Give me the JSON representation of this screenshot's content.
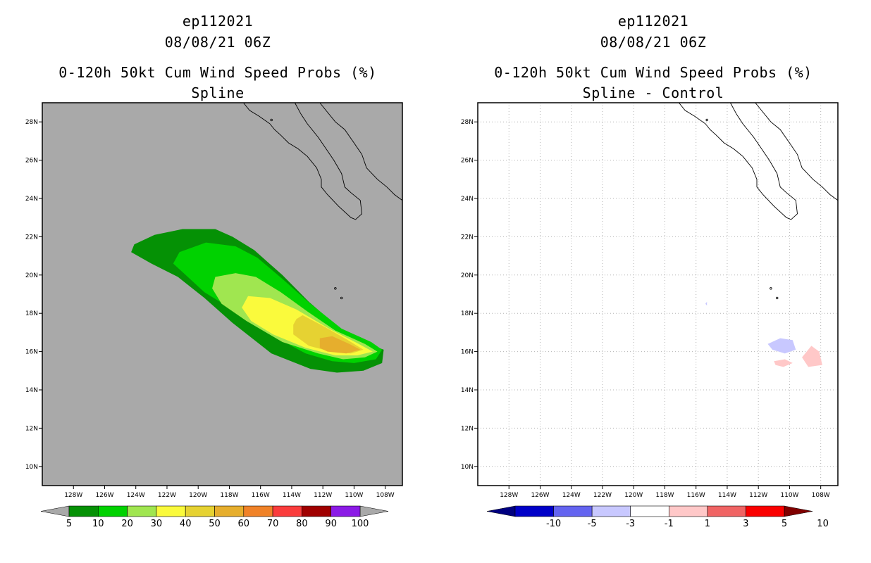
{
  "chart_data": [
    {
      "type": "heatmap",
      "title_lines": [
        "ep112021",
        "08/08/21 06Z",
        "0-120h 50kt Cum Wind Speed Probs (%)",
        "Spline"
      ],
      "xlabel": "",
      "ylabel": "",
      "xlim": [
        -130,
        -106.9
      ],
      "ylim": [
        9,
        29
      ],
      "x_ticks": [
        "128W",
        "126W",
        "124W",
        "122W",
        "120W",
        "118W",
        "116W",
        "114W",
        "112W",
        "110W",
        "108W"
      ],
      "x_tick_values": [
        -128,
        -126,
        -124,
        -122,
        -120,
        -118,
        -116,
        -114,
        -112,
        -110,
        -108
      ],
      "y_ticks": [
        "10N",
        "12N",
        "14N",
        "16N",
        "18N",
        "20N",
        "22N",
        "24N",
        "26N",
        " 28N"
      ],
      "y_tick_values": [
        10,
        12,
        14,
        16,
        18,
        20,
        22,
        24,
        26,
        28
      ],
      "grid": false,
      "background": "#a9a9a9",
      "colorbar": {
        "labels": [
          "5",
          "10",
          "20",
          "30",
          "40",
          "50",
          "60",
          "70",
          "80",
          "90",
          "100"
        ],
        "colors": [
          "#059105",
          "#00d200",
          "#a0e650",
          "#fafa3c",
          "#e6d232",
          "#e6ae2d",
          "#f08228",
          "#fa3c3c",
          "#a00000",
          "#8b1be6"
        ],
        "left_arrow": "#a9a9a9",
        "right_arrow": "#a9a9a9"
      },
      "contours": [
        {
          "level": 5,
          "color": "#059105",
          "polygon": [
            [
              -124.3,
              21.2
            ],
            [
              -124.1,
              21.6
            ],
            [
              -122.8,
              22.1
            ],
            [
              -121.0,
              22.4
            ],
            [
              -118.9,
              22.4
            ],
            [
              -117.8,
              22.0
            ],
            [
              -116.4,
              21.3
            ],
            [
              -114.6,
              20.0
            ],
            [
              -112.9,
              18.6
            ],
            [
              -110.9,
              17.2
            ],
            [
              -109.1,
              16.4
            ],
            [
              -108.1,
              16.1
            ],
            [
              -108.2,
              15.4
            ],
            [
              -109.4,
              15.0
            ],
            [
              -111.1,
              14.9
            ],
            [
              -112.8,
              15.1
            ],
            [
              -115.3,
              15.9
            ],
            [
              -117.8,
              17.5
            ],
            [
              -119.6,
              18.8
            ],
            [
              -121.3,
              19.9
            ],
            [
              -123.0,
              20.6
            ]
          ]
        },
        {
          "level": 10,
          "color": "#00d200",
          "polygon": [
            [
              -121.6,
              20.6
            ],
            [
              -121.2,
              21.2
            ],
            [
              -119.5,
              21.7
            ],
            [
              -117.6,
              21.5
            ],
            [
              -116.2,
              20.9
            ],
            [
              -114.6,
              19.8
            ],
            [
              -112.8,
              18.5
            ],
            [
              -110.8,
              17.2
            ],
            [
              -108.9,
              16.5
            ],
            [
              -108.2,
              16.1
            ],
            [
              -108.6,
              15.6
            ],
            [
              -110.0,
              15.4
            ],
            [
              -111.4,
              15.5
            ],
            [
              -113.1,
              15.9
            ],
            [
              -115.4,
              16.9
            ],
            [
              -117.6,
              18.1
            ],
            [
              -119.6,
              19.1
            ]
          ]
        },
        {
          "level": 20,
          "color": "#a0e650",
          "polygon": [
            [
              -119.1,
              19.3
            ],
            [
              -118.9,
              19.9
            ],
            [
              -117.6,
              20.1
            ],
            [
              -116.3,
              19.9
            ],
            [
              -114.7,
              19.1
            ],
            [
              -113.0,
              18.1
            ],
            [
              -111.2,
              17.1
            ],
            [
              -109.3,
              16.4
            ],
            [
              -108.5,
              16.0
            ],
            [
              -109.3,
              15.7
            ],
            [
              -110.7,
              15.6
            ],
            [
              -112.3,
              15.9
            ],
            [
              -114.6,
              16.5
            ],
            [
              -116.9,
              17.6
            ],
            [
              -118.5,
              18.5
            ]
          ]
        },
        {
          "level": 30,
          "color": "#fafa3c",
          "polygon": [
            [
              -117.2,
              18.3
            ],
            [
              -116.8,
              18.9
            ],
            [
              -115.4,
              18.8
            ],
            [
              -113.7,
              18.2
            ],
            [
              -111.6,
              17.2
            ],
            [
              -109.7,
              16.4
            ],
            [
              -108.8,
              16.0
            ],
            [
              -109.8,
              15.8
            ],
            [
              -111.2,
              15.8
            ],
            [
              -113.1,
              16.2
            ],
            [
              -115.2,
              16.9
            ],
            [
              -116.6,
              17.6
            ]
          ]
        },
        {
          "level": 40,
          "color": "#e6d232",
          "polygon": [
            [
              -113.7,
              17.7
            ],
            [
              -113.3,
              17.9
            ],
            [
              -111.9,
              17.3
            ],
            [
              -110.4,
              16.6
            ],
            [
              -109.4,
              16.1
            ],
            [
              -110.2,
              15.9
            ],
            [
              -111.5,
              16.0
            ],
            [
              -112.9,
              16.3
            ],
            [
              -113.9,
              16.9
            ],
            [
              -113.9,
              17.4
            ]
          ]
        },
        {
          "level": 50,
          "color": "#e6ae2d",
          "polygon": [
            [
              -112.2,
              16.7
            ],
            [
              -111.4,
              16.8
            ],
            [
              -110.3,
              16.4
            ],
            [
              -109.6,
              16.1
            ],
            [
              -110.5,
              15.9
            ],
            [
              -111.7,
              16.0
            ],
            [
              -112.2,
              16.2
            ]
          ]
        }
      ],
      "coast_label": "Baja California coastline"
    },
    {
      "type": "heatmap",
      "title_lines": [
        "ep112021",
        "08/08/21 06Z",
        "0-120h 50kt Cum Wind Speed Probs (%)",
        "Spline - Control"
      ],
      "xlabel": "",
      "ylabel": "",
      "xlim": [
        -130,
        -106.9
      ],
      "ylim": [
        9,
        29
      ],
      "x_ticks": [
        "128W",
        "126W",
        "124W",
        "122W",
        "120W",
        "118W",
        "116W",
        "114W",
        "112W",
        "110W",
        "108W"
      ],
      "x_tick_values": [
        -128,
        -126,
        -124,
        -122,
        -120,
        -118,
        -116,
        -114,
        -112,
        -110,
        -108
      ],
      "y_ticks": [
        "10N",
        "12N",
        "14N",
        "16N",
        "18N",
        "20N",
        "22N",
        "24N",
        "26N",
        "28N"
      ],
      "y_tick_values": [
        10,
        12,
        14,
        16,
        18,
        20,
        22,
        24,
        26,
        28
      ],
      "grid": true,
      "background": "#ffffff",
      "colorbar": {
        "labels": [
          "-10",
          "-5",
          "-3",
          "-1",
          "1",
          "3",
          "5",
          "10"
        ],
        "colors": [
          "#0000c8",
          "#6464f0",
          "#c8c8ff",
          "#ffffff",
          "#ffc8c8",
          "#f06464",
          "#fa0000"
        ],
        "left_arrow": "#000080",
        "right_arrow": "#800000"
      },
      "contours": [
        {
          "level": -3,
          "color": "#c8c8ff",
          "polygon": [
            [
              -111.4,
              16.4
            ],
            [
              -110.6,
              16.7
            ],
            [
              -109.8,
              16.6
            ],
            [
              -109.6,
              16.1
            ],
            [
              -110.3,
              15.9
            ],
            [
              -111.1,
              16.1
            ]
          ]
        },
        {
          "level": -3,
          "color": "#c8c8ff",
          "polygon": [
            [
              -115.4,
              18.5
            ],
            [
              -115.3,
              18.6
            ],
            [
              -115.3,
              18.4
            ]
          ]
        },
        {
          "level": 3,
          "color": "#ffc8c8",
          "polygon": [
            [
              -111.0,
              15.5
            ],
            [
              -110.3,
              15.6
            ],
            [
              -109.8,
              15.4
            ],
            [
              -110.4,
              15.2
            ],
            [
              -110.9,
              15.3
            ]
          ]
        },
        {
          "level": 3,
          "color": "#ffc8c8",
          "polygon": [
            [
              -109.2,
              15.7
            ],
            [
              -108.6,
              16.3
            ],
            [
              -108.1,
              16.0
            ],
            [
              -107.9,
              15.3
            ],
            [
              -108.8,
              15.2
            ]
          ]
        }
      ],
      "coast_label": "Baja California coastline"
    }
  ]
}
